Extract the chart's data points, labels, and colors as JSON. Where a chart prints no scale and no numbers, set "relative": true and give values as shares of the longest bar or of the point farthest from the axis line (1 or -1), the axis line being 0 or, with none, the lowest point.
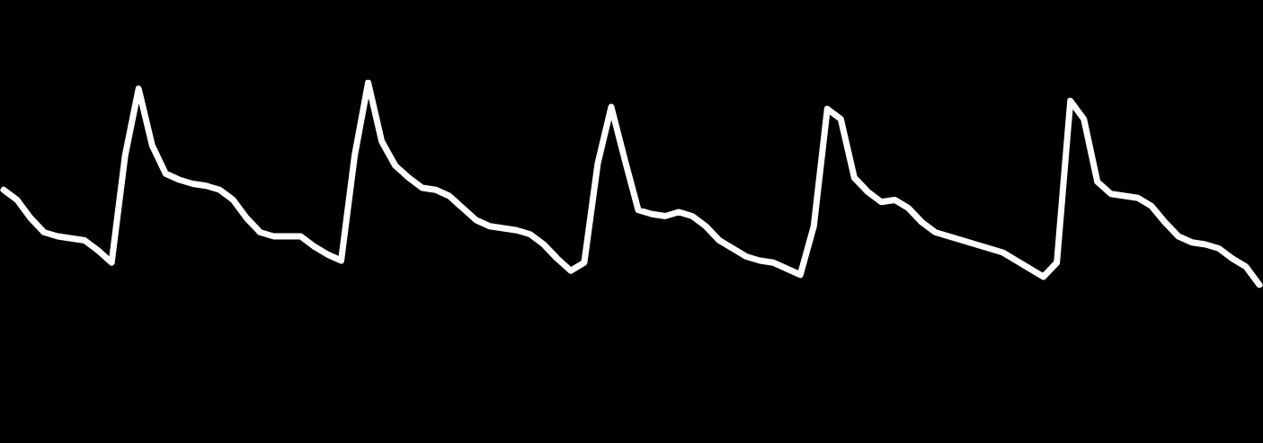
{
  "chart_data": {
    "type": "line",
    "relative": true,
    "color": "#ffffff",
    "categories": [
      null,
      null,
      null,
      null,
      null,
      null,
      null,
      null,
      null,
      null,
      null,
      null,
      null,
      null,
      null,
      null,
      null,
      null,
      null,
      null,
      null,
      null,
      null,
      null,
      null,
      null,
      null,
      null,
      null,
      null,
      null,
      null,
      null,
      null,
      null,
      null,
      null,
      null,
      null,
      null,
      null,
      null,
      null,
      null,
      null,
      null,
      null,
      null,
      null,
      null,
      null,
      null,
      null,
      null,
      null,
      null,
      null,
      null,
      null,
      null,
      null,
      null,
      null,
      null,
      null,
      null,
      null,
      null,
      null,
      null,
      null,
      null,
      null,
      null,
      null,
      null,
      null,
      null,
      null,
      null,
      null,
      null,
      null,
      null,
      null,
      null,
      null,
      null,
      null,
      null,
      null,
      null,
      null,
      null
    ],
    "values": [
      0.47,
      0.42,
      0.33,
      0.26,
      0.24,
      0.23,
      0.22,
      0.17,
      0.11,
      0.64,
      0.97,
      0.69,
      0.55,
      0.52,
      0.5,
      0.49,
      0.47,
      0.42,
      0.33,
      0.26,
      0.24,
      0.24,
      0.24,
      0.19,
      0.15,
      0.12,
      0.64,
      1,
      0.71,
      0.59,
      0.53,
      0.48,
      0.47,
      0.44,
      0.38,
      0.32,
      0.29,
      0.28,
      0.27,
      0.25,
      0.2,
      0.13,
      0.07,
      0.11,
      0.6,
      0.88,
      0.62,
      0.37,
      0.35,
      0.34,
      0.36,
      0.34,
      0.29,
      0.22,
      0.18,
      0.14,
      0.12,
      0.11,
      0.08,
      0.05,
      0.29,
      0.87,
      0.82,
      0.53,
      0.46,
      0.41,
      0.42,
      0.38,
      0.31,
      0.26,
      0.24,
      0.22,
      0.2,
      0.18,
      0.16,
      0.12,
      0.08,
      0.04,
      0.11,
      0.91,
      0.82,
      0.51,
      0.45,
      0.44,
      0.43,
      0.39,
      0.31,
      0.24,
      0.21,
      0.2,
      0.18,
      0.13,
      0.09,
      0
    ]
  }
}
